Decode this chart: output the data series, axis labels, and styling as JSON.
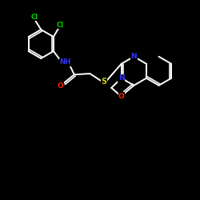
{
  "background_color": "#000000",
  "bond_color": "#ffffff",
  "atom_colors": {
    "Cl": "#00cc00",
    "N": "#3333ff",
    "O": "#ff2200",
    "S": "#cccc00",
    "C": "#ffffff",
    "H": "#ffffff"
  },
  "figsize": [
    2.5,
    2.5
  ],
  "dpi": 100
}
